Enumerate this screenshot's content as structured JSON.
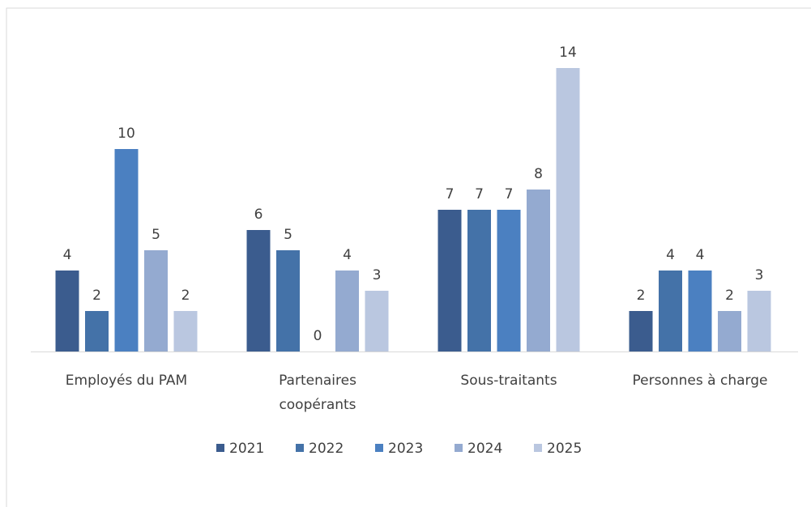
{
  "chart_data": {
    "type": "bar",
    "categories": [
      "Employés du PAM",
      "Partenaires coopérants",
      "Sous-traitants",
      "Personnes à charge"
    ],
    "series": [
      {
        "name": "2021",
        "color": "#3b5c8e",
        "values": [
          4,
          6,
          7,
          2
        ]
      },
      {
        "name": "2022",
        "color": "#4472a8",
        "values": [
          2,
          5,
          7,
          4
        ]
      },
      {
        "name": "2023",
        "color": "#4b80c1",
        "values": [
          10,
          0,
          7,
          4
        ]
      },
      {
        "name": "2024",
        "color": "#94aad0",
        "values": [
          5,
          4,
          8,
          2
        ]
      },
      {
        "name": "2025",
        "color": "#bac7e0",
        "values": [
          2,
          3,
          14,
          3
        ]
      }
    ]
  }
}
